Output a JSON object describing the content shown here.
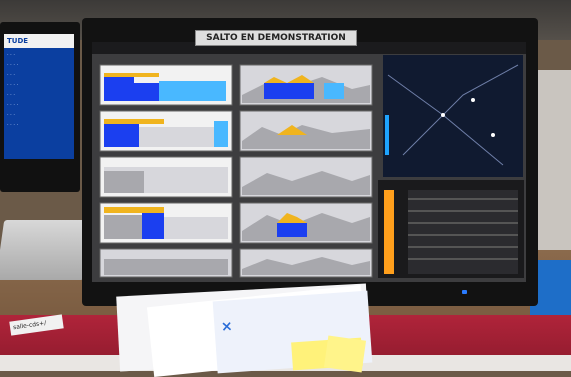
{
  "screen": {
    "banner_text": "SALTO EN DEMONSTRATION"
  },
  "left_monitor": {
    "title": "TUDE"
  },
  "sticker": {
    "text": "salle-cds+/"
  },
  "colors": {
    "bar_blue": "#1b3ff0",
    "bar_light_blue": "#49b8ff",
    "bar_yellow": "#f0b41e",
    "grey_area": "#a8a8ad",
    "light_area": "#d7d7dc"
  }
}
